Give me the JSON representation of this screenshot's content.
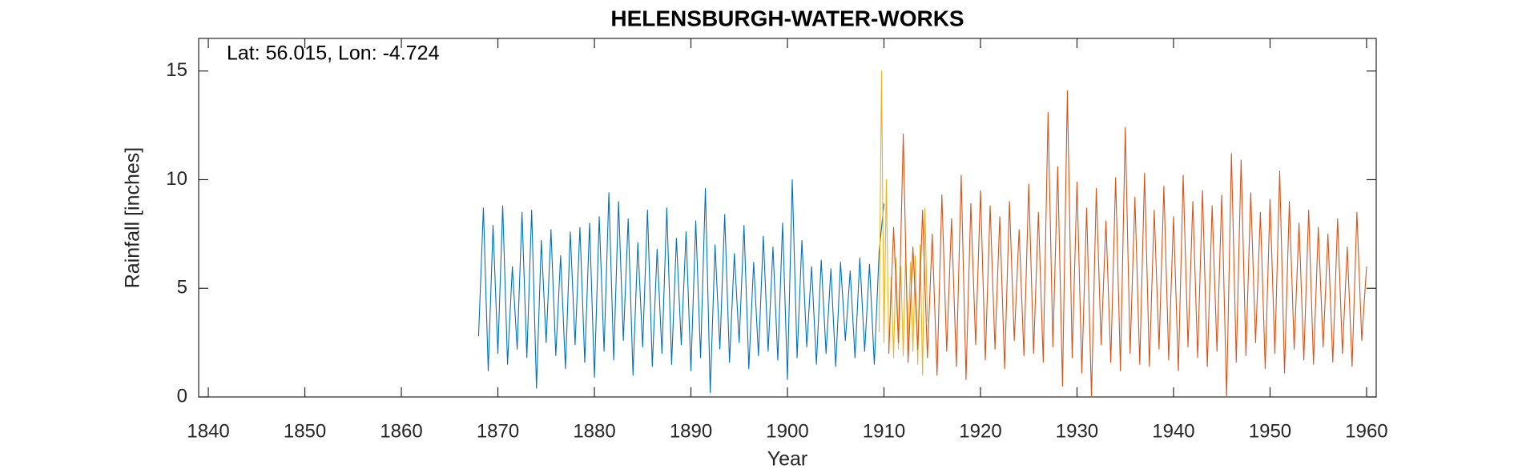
{
  "chart_data": {
    "type": "line",
    "title": "HELENSBURGH-WATER-WORKS",
    "annotation": "Lat: 56.015, Lon: -4.724",
    "x_label": "Year",
    "y_label": "Rainfall [inches]",
    "xlim": [
      1839,
      1961
    ],
    "ylim": [
      0,
      16.5
    ],
    "xticks": [
      1840,
      1850,
      1860,
      1870,
      1880,
      1890,
      1900,
      1910,
      1920,
      1930,
      1940,
      1950,
      1960
    ],
    "yticks": [
      0,
      5,
      10,
      15
    ],
    "grid": false,
    "series": [
      {
        "color": "#0072BD",
        "x": [
          1868,
          1868.5,
          1869,
          1869.5,
          1870,
          1870.5,
          1871,
          1871.5,
          1872,
          1872.5,
          1873,
          1873.5,
          1874,
          1874.5,
          1875,
          1875.5,
          1876,
          1876.5,
          1877,
          1877.5,
          1878,
          1878.5,
          1879,
          1879.5,
          1880,
          1880.5,
          1881,
          1881.5,
          1882,
          1882.5,
          1883,
          1883.5,
          1884,
          1884.5,
          1885,
          1885.5,
          1886,
          1886.5,
          1887,
          1887.5,
          1888,
          1888.5,
          1889,
          1889.5,
          1890,
          1890.5,
          1891,
          1891.5,
          1892,
          1892.5,
          1893,
          1893.5,
          1894,
          1894.5,
          1895,
          1895.5,
          1896,
          1896.5,
          1897,
          1897.5,
          1898,
          1898.5,
          1899,
          1899.5,
          1900,
          1900.5,
          1901,
          1901.5,
          1902,
          1902.5,
          1903,
          1903.5,
          1904,
          1904.5,
          1905,
          1905.5,
          1906,
          1906.5,
          1907,
          1907.5,
          1908,
          1908.5,
          1909,
          1909.5,
          1910
        ],
        "values": [
          2.8,
          8.7,
          1.2,
          7.9,
          2.0,
          8.8,
          1.5,
          6.0,
          2.2,
          8.5,
          1.8,
          8.6,
          0.4,
          7.2,
          2.5,
          7.7,
          1.9,
          6.5,
          1.3,
          7.6,
          2.4,
          7.8,
          1.6,
          8.0,
          0.9,
          8.3,
          2.1,
          9.4,
          1.7,
          9.0,
          2.6,
          8.2,
          1.0,
          7.1,
          2.3,
          8.6,
          1.4,
          6.8,
          2.0,
          8.7,
          1.5,
          7.3,
          2.4,
          7.6,
          1.2,
          8.1,
          1.8,
          9.6,
          0.2,
          7.0,
          2.2,
          8.4,
          1.6,
          6.6,
          2.5,
          7.9,
          1.3,
          6.2,
          1.9,
          7.4,
          2.1,
          6.9,
          1.7,
          8.0,
          0.8,
          10.0,
          1.8,
          7.2,
          2.3,
          6.0,
          1.5,
          6.3,
          2.0,
          5.9,
          1.4,
          6.2,
          2.6,
          5.8,
          1.8,
          6.4,
          2.1,
          6.1,
          1.5,
          6.7,
          8.9
        ]
      },
      {
        "color": "#EDB120",
        "x": [
          1909.5,
          1909.75,
          1910,
          1910.25,
          1910.5,
          1910.75,
          1911,
          1911.25,
          1911.5,
          1911.75,
          1912,
          1912.25,
          1912.5,
          1912.75,
          1913,
          1913.25,
          1913.5,
          1913.75,
          1914,
          1914.25,
          1914.5
        ],
        "values": [
          3.0,
          15.0,
          2.5,
          10.0,
          2.0,
          5.5,
          1.8,
          6.4,
          2.2,
          6.0,
          1.9,
          6.8,
          2.4,
          6.2,
          2.1,
          6.5,
          1.5,
          7.0,
          1.0,
          8.7,
          3.5
        ]
      },
      {
        "color": "#D95319",
        "x": [
          1910.5,
          1911,
          1911.5,
          1912,
          1912.5,
          1913,
          1913.5,
          1914,
          1914.5,
          1915,
          1915.5,
          1916,
          1916.5,
          1917,
          1917.5,
          1918,
          1918.5,
          1919,
          1919.5,
          1920,
          1920.5,
          1921,
          1921.5,
          1922,
          1922.5,
          1923,
          1923.5,
          1924,
          1924.5,
          1925,
          1925.5,
          1926,
          1926.5,
          1927,
          1927.5,
          1928,
          1928.5,
          1929,
          1929.5,
          1930,
          1930.5,
          1931,
          1931.5,
          1932,
          1932.5,
          1933,
          1933.5,
          1934,
          1934.5,
          1935,
          1935.5,
          1936,
          1936.5,
          1937,
          1937.5,
          1938,
          1938.5,
          1939,
          1939.5,
          1940,
          1940.5,
          1941,
          1941.5,
          1942,
          1942.5,
          1943,
          1943.5,
          1944,
          1944.5,
          1945,
          1945.5,
          1946,
          1946.5,
          1947,
          1947.5,
          1948,
          1948.5,
          1949,
          1949.5,
          1950,
          1950.5,
          1951,
          1951.5,
          1952,
          1952.5,
          1953,
          1953.5,
          1954,
          1954.5,
          1955,
          1955.5,
          1956,
          1956.5,
          1957,
          1957.5,
          1958,
          1958.5,
          1959,
          1959.5,
          1960
        ],
        "values": [
          2.0,
          7.8,
          2.5,
          12.1,
          1.6,
          6.9,
          2.2,
          8.6,
          1.8,
          7.5,
          1.0,
          9.3,
          2.1,
          8.2,
          1.4,
          10.2,
          0.8,
          8.9,
          2.4,
          9.5,
          1.7,
          8.8,
          2.2,
          8.3,
          1.3,
          9.0,
          2.6,
          7.7,
          1.9,
          9.8,
          2.0,
          8.5,
          1.6,
          13.1,
          2.3,
          10.6,
          0.5,
          14.1,
          1.8,
          9.9,
          1.1,
          8.7,
          0.0,
          9.6,
          2.4,
          8.1,
          1.6,
          10.1,
          1.2,
          12.4,
          2.0,
          9.2,
          1.5,
          10.3,
          1.4,
          8.6,
          2.2,
          9.7,
          1.7,
          8.3,
          1.2,
          10.2,
          2.3,
          9.0,
          1.8,
          9.5,
          1.4,
          8.8,
          2.1,
          9.3,
          0.0,
          11.2,
          1.6,
          10.9,
          1.9,
          9.4,
          2.5,
          8.5,
          1.3,
          9.1,
          2.0,
          10.4,
          1.1,
          9.0,
          2.2,
          8.0,
          1.7,
          8.6,
          1.5,
          7.8,
          2.3,
          7.5,
          1.6,
          8.2,
          2.0,
          6.9,
          1.4,
          8.5,
          2.6,
          6.0
        ]
      }
    ]
  }
}
